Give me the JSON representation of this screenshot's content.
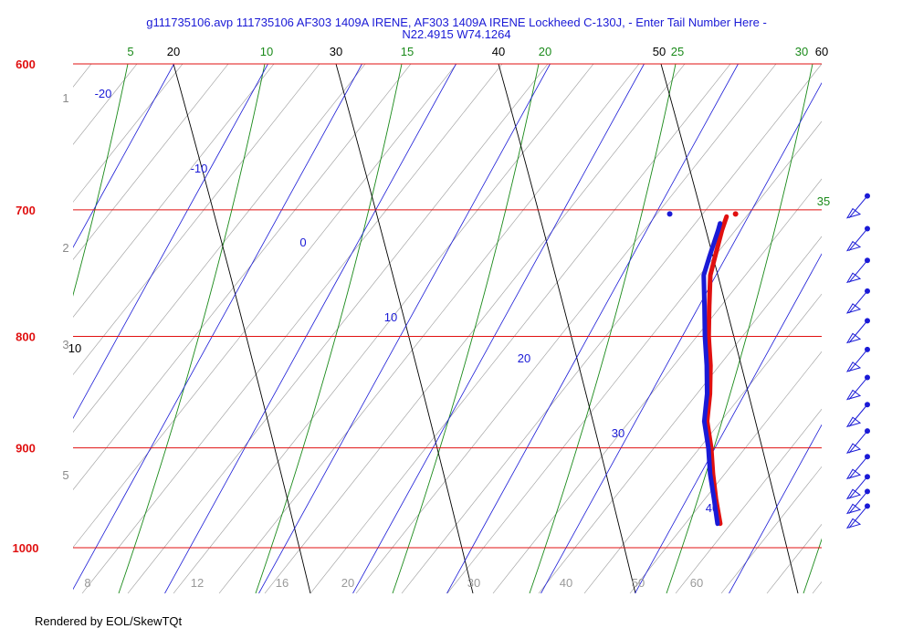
{
  "title_line1": "g111735106.avp 111735106 AF303 1409A IRENE, AF303 1409A IRENE Lockheed C-130J, - Enter Tail Number Here -",
  "title_line2": "N22.4915 W74.1264",
  "footer": "Rendered by EOL/SkewTQt",
  "colors": {
    "isobar": "#e01010",
    "isotherm": "#1a1ad6",
    "dry_adiabat": "#000000",
    "moist_adiabat": "#1a8a1a",
    "mixing_ratio": "#9a9a9a",
    "temperature": "#e01010",
    "dewpoint": "#1a1ad6",
    "wind": "#1a1ad6"
  },
  "chart_data": {
    "type": "skew-t",
    "pressure_range_hpa": [
      1000,
      600
    ],
    "isobars_hpa": [
      600,
      700,
      800,
      900,
      1000
    ],
    "isotherms_c": [
      -20,
      -10,
      0,
      10,
      20,
      30,
      40
    ],
    "dry_adiabat_labels_c": [
      10,
      20,
      30,
      40,
      50,
      60
    ],
    "moist_adiabat_labels_c": [
      5,
      10,
      15,
      20,
      25,
      30,
      35
    ],
    "mixing_ratio_labels_gkg": [
      8,
      12,
      16,
      20,
      30,
      40,
      50,
      60
    ],
    "height_labels_km": [
      1,
      2,
      3,
      5
    ],
    "temperature_profile_c": [
      {
        "p": 975,
        "t": 25.0
      },
      {
        "p": 950,
        "t": 23.1
      },
      {
        "p": 925,
        "t": 21.3
      },
      {
        "p": 900,
        "t": 19.6
      },
      {
        "p": 875,
        "t": 17.6
      },
      {
        "p": 850,
        "t": 16.3
      },
      {
        "p": 825,
        "t": 14.7
      },
      {
        "p": 800,
        "t": 12.8
      },
      {
        "p": 775,
        "t": 11.1
      },
      {
        "p": 750,
        "t": 9.4
      },
      {
        "p": 735,
        "t": 8.8
      },
      {
        "p": 715,
        "t": 8.0
      },
      {
        "p": 705,
        "t": 7.7
      }
    ],
    "dewpoint_profile_c": [
      {
        "p": 975,
        "t": 24.7
      },
      {
        "p": 950,
        "t": 22.9
      },
      {
        "p": 925,
        "t": 21.0
      },
      {
        "p": 900,
        "t": 19.3
      },
      {
        "p": 875,
        "t": 17.3
      },
      {
        "p": 850,
        "t": 16.0
      },
      {
        "p": 825,
        "t": 14.3
      },
      {
        "p": 800,
        "t": 12.4
      },
      {
        "p": 775,
        "t": 10.6
      },
      {
        "p": 750,
        "t": 8.7
      },
      {
        "p": 735,
        "t": 8.2
      },
      {
        "p": 715,
        "t": 7.6
      },
      {
        "p": 710,
        "t": 7.4
      }
    ],
    "isolated_points": [
      {
        "series": "temperature",
        "p": 703,
        "t": 8.5
      },
      {
        "series": "dewpoint",
        "p": 703,
        "t": 1.5
      }
    ],
    "wind_levels_hpa": [
      710,
      735,
      760,
      785,
      810,
      835,
      860,
      885,
      910,
      935,
      955,
      970,
      985
    ]
  }
}
